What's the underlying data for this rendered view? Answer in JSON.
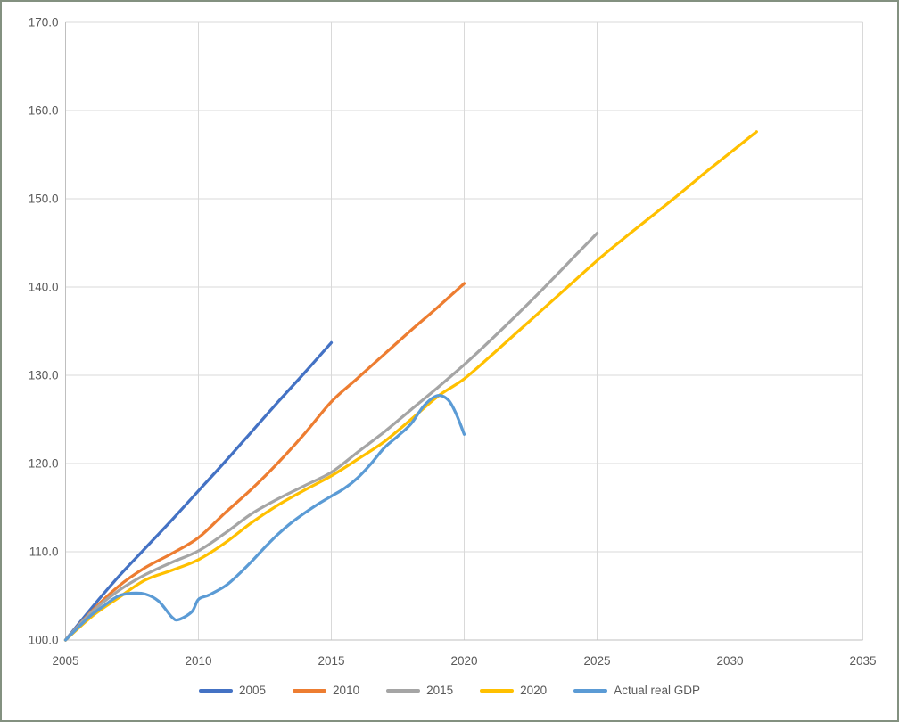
{
  "window": {
    "background": "#ffffff",
    "frame_border_color": "#839180"
  },
  "chart_data": {
    "type": "line",
    "title": "",
    "xlabel": "",
    "ylabel": "",
    "grid": true,
    "smoothed_lines": true,
    "legend_position": "bottom",
    "gridline_color": "#d9d9d9",
    "axis_line_color": "#bfbfbf",
    "tick_label_color": "#595959",
    "x_axis": {
      "min": 2005,
      "max": 2035,
      "tick_step": 5,
      "tick_labels": [
        "2005",
        "2010",
        "2015",
        "2020",
        "2025",
        "2030",
        "2035"
      ]
    },
    "y_axis": {
      "min": 100,
      "max": 170,
      "tick_step": 10,
      "tick_labels": [
        "100.0",
        "110.0",
        "120.0",
        "130.0",
        "140.0",
        "150.0",
        "160.0",
        "170.0"
      ]
    },
    "series": [
      {
        "name": "2005",
        "color": "#4472C4",
        "points": [
          [
            2005,
            100
          ],
          [
            2006,
            103.7
          ],
          [
            2007,
            107.2
          ],
          [
            2008,
            110.4
          ],
          [
            2009,
            113.6
          ],
          [
            2010,
            116.9
          ],
          [
            2011,
            120.2
          ],
          [
            2012,
            123.6
          ],
          [
            2013,
            127.0
          ],
          [
            2014,
            130.3
          ],
          [
            2015,
            133.7
          ]
        ]
      },
      {
        "name": "2010",
        "color": "#ED7D31",
        "points": [
          [
            2005,
            100
          ],
          [
            2006,
            103.3
          ],
          [
            2007,
            106.1
          ],
          [
            2008,
            108.2
          ],
          [
            2009,
            109.8
          ],
          [
            2010,
            111.6
          ],
          [
            2011,
            114.4
          ],
          [
            2012,
            117.1
          ],
          [
            2013,
            120.1
          ],
          [
            2014,
            123.4
          ],
          [
            2015,
            127.0
          ],
          [
            2016,
            129.7
          ],
          [
            2017,
            132.4
          ],
          [
            2018,
            135.1
          ],
          [
            2019,
            137.7
          ],
          [
            2020,
            140.4
          ]
        ]
      },
      {
        "name": "2015",
        "color": "#A5A5A5",
        "points": [
          [
            2005,
            100
          ],
          [
            2006,
            103.2
          ],
          [
            2007,
            105.6
          ],
          [
            2008,
            107.4
          ],
          [
            2009,
            108.8
          ],
          [
            2010,
            110.1
          ],
          [
            2011,
            112.1
          ],
          [
            2012,
            114.3
          ],
          [
            2013,
            116.0
          ],
          [
            2014,
            117.5
          ],
          [
            2015,
            119.0
          ],
          [
            2016,
            121.3
          ],
          [
            2017,
            123.6
          ],
          [
            2018,
            126.1
          ],
          [
            2019,
            128.6
          ],
          [
            2020,
            131.2
          ],
          [
            2021,
            134.0
          ],
          [
            2022,
            136.9
          ],
          [
            2023,
            139.9
          ],
          [
            2024,
            143.0
          ],
          [
            2025,
            146.1
          ]
        ]
      },
      {
        "name": "2020",
        "color": "#FFC000",
        "points": [
          [
            2005,
            100
          ],
          [
            2006,
            102.7
          ],
          [
            2007,
            104.8
          ],
          [
            2008,
            106.8
          ],
          [
            2009,
            107.9
          ],
          [
            2010,
            109.1
          ],
          [
            2011,
            111.0
          ],
          [
            2012,
            113.3
          ],
          [
            2013,
            115.3
          ],
          [
            2014,
            117.0
          ],
          [
            2015,
            118.6
          ],
          [
            2016,
            120.5
          ],
          [
            2017,
            122.5
          ],
          [
            2018,
            125.0
          ],
          [
            2019,
            127.6
          ],
          [
            2020,
            129.6
          ],
          [
            2021,
            132.2
          ],
          [
            2022,
            134.9
          ],
          [
            2023,
            137.6
          ],
          [
            2024,
            140.3
          ],
          [
            2025,
            143.0
          ],
          [
            2026,
            145.5
          ],
          [
            2027,
            147.9
          ],
          [
            2028,
            150.3
          ],
          [
            2029,
            152.8
          ],
          [
            2030,
            155.2
          ],
          [
            2031,
            157.6
          ]
        ]
      },
      {
        "name": "Actual real GDP",
        "color": "#5B9BD5",
        "points": [
          [
            2005,
            100
          ],
          [
            2005.5,
            101.5
          ],
          [
            2006,
            102.9
          ],
          [
            2006.5,
            104.0
          ],
          [
            2007,
            105.0
          ],
          [
            2007.5,
            105.3
          ],
          [
            2008,
            105.2
          ],
          [
            2008.5,
            104.4
          ],
          [
            2009,
            102.6
          ],
          [
            2009.25,
            102.3
          ],
          [
            2009.75,
            103.2
          ],
          [
            2010,
            104.6
          ],
          [
            2010.4,
            105.1
          ],
          [
            2011,
            106.1
          ],
          [
            2011.5,
            107.4
          ],
          [
            2012,
            108.9
          ],
          [
            2012.5,
            110.5
          ],
          [
            2013,
            112.0
          ],
          [
            2013.5,
            113.3
          ],
          [
            2014,
            114.4
          ],
          [
            2014.5,
            115.4
          ],
          [
            2015,
            116.3
          ],
          [
            2015.5,
            117.2
          ],
          [
            2016,
            118.4
          ],
          [
            2016.5,
            120.0
          ],
          [
            2017,
            121.8
          ],
          [
            2017.5,
            123.1
          ],
          [
            2018,
            124.5
          ],
          [
            2018.5,
            126.6
          ],
          [
            2019,
            127.7
          ],
          [
            2019.4,
            127.2
          ],
          [
            2019.7,
            125.6
          ],
          [
            2020,
            123.3
          ]
        ]
      }
    ]
  }
}
